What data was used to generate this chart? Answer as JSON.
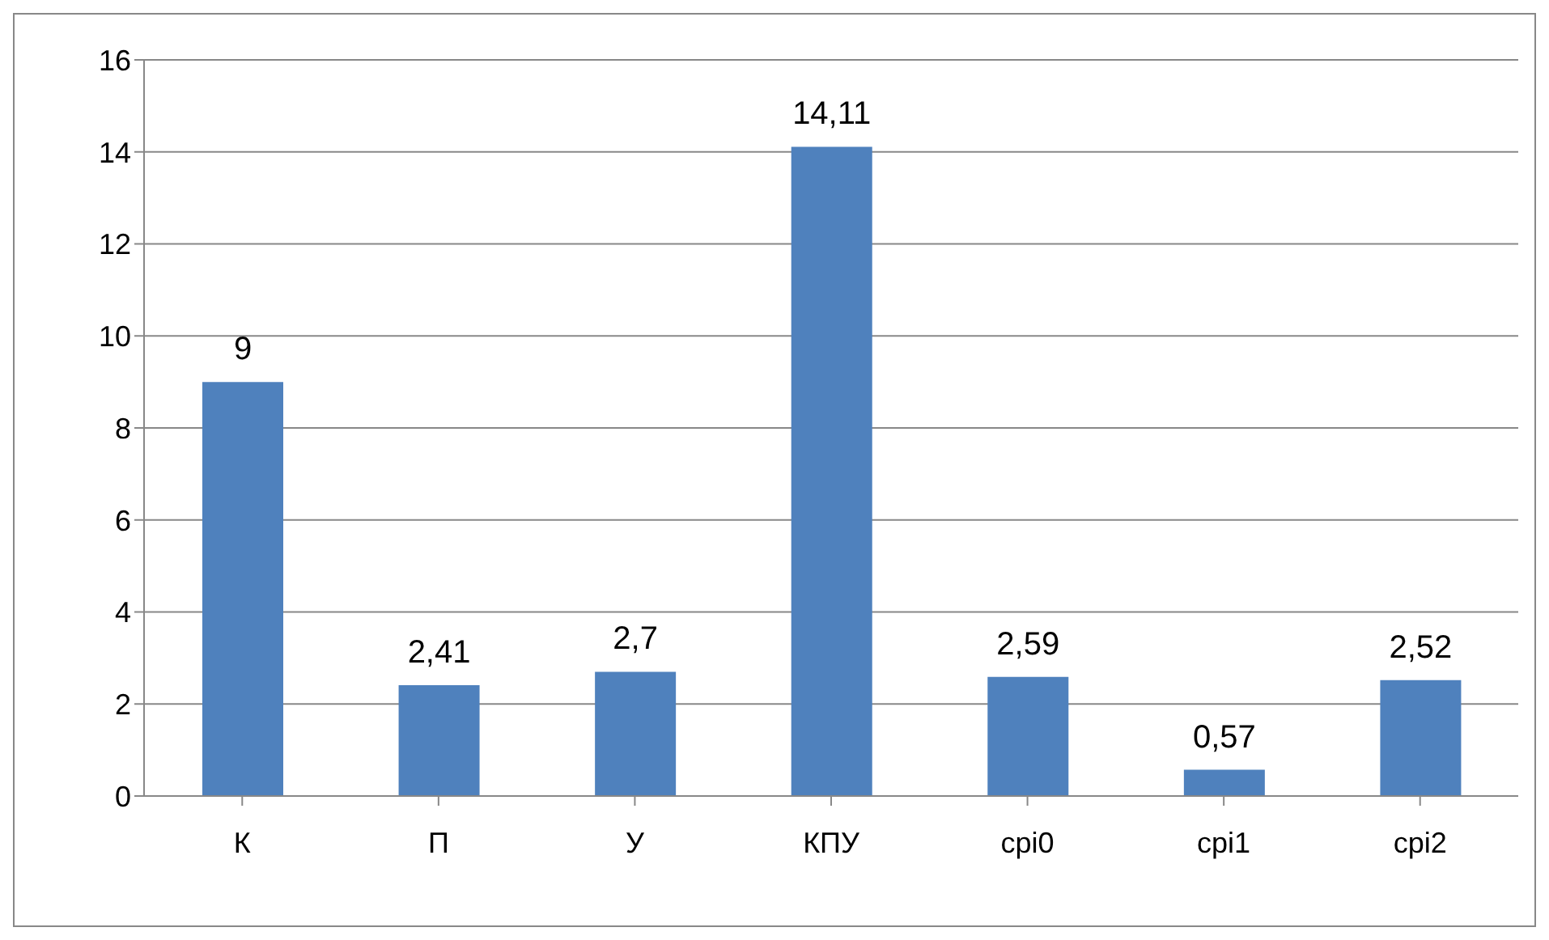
{
  "chart_data": {
    "type": "bar",
    "categories": [
      "К",
      "П",
      "У",
      "КПУ",
      "срі0",
      "срі1",
      "срі2"
    ],
    "values": [
      9,
      2.41,
      2.7,
      14.11,
      2.59,
      0.57,
      2.52
    ],
    "value_labels": [
      "9",
      "2,41",
      "2,7",
      "14,11",
      "2,59",
      "0,57",
      "2,52"
    ],
    "color": "#4f81bd",
    "ylim": [
      0,
      16
    ],
    "yticks": [
      0,
      2,
      4,
      6,
      8,
      10,
      12,
      14,
      16
    ],
    "grid": "y"
  }
}
